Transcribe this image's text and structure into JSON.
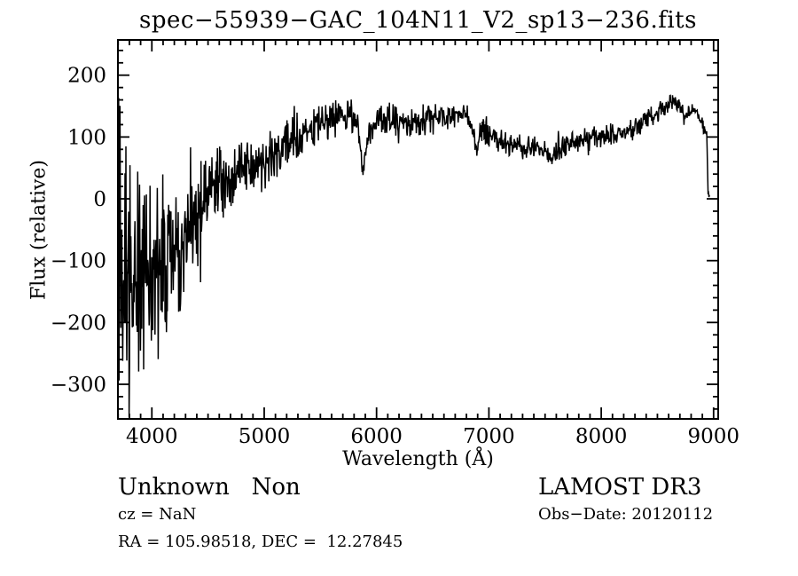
{
  "annotations": {
    "class_label": "Unknown   Non",
    "cz_label": "cz = NaN",
    "radec_label": "RA = 105.98518, DEC =  12.27845",
    "survey_label": "LAMOST DR3",
    "obsdate_label": "Obs−Date: 20120112"
  },
  "colors": {
    "line": "#000000",
    "background": "#ffffff",
    "text": "#000000"
  },
  "chart_data": {
    "type": "line",
    "title": "spec−55939−GAC_104N11_V2_sp13−236.fits",
    "xlabel": "Wavelength (Å)",
    "ylabel": "Flux (relative)",
    "xlim": [
      3698,
      9041
    ],
    "ylim": [
      -356,
      257
    ],
    "x_ticks": [
      4000,
      5000,
      6000,
      7000,
      8000,
      9000
    ],
    "x_minor_step": 100,
    "y_ticks": [
      -300,
      -200,
      -100,
      0,
      100,
      200
    ],
    "y_minor_step": 20,
    "grid": false,
    "legend": false,
    "series": [
      {
        "name": "spectrum",
        "samples": 1300,
        "noise_seed": 20120112,
        "control_points": {
          "wavelength": [
            3700,
            3720,
            3760,
            3800,
            3850,
            3900,
            3950,
            4000,
            4050,
            4100,
            4200,
            4300,
            4400,
            4500,
            4600,
            4700,
            4800,
            4900,
            5000,
            5100,
            5200,
            5300,
            5400,
            5500,
            5600,
            5700,
            5800,
            5840,
            5880,
            5930,
            6000,
            6100,
            6200,
            6300,
            6400,
            6500,
            6600,
            6700,
            6800,
            6860,
            6890,
            6930,
            7000,
            7100,
            7200,
            7300,
            7400,
            7500,
            7570,
            7630,
            7700,
            7800,
            7900,
            8000,
            8100,
            8200,
            8300,
            8400,
            8500,
            8600,
            8640,
            8700,
            8740,
            8800,
            8840,
            8880,
            8920,
            8940,
            8950,
            8963
          ],
          "flux_mean": [
            -40,
            -70,
            -90,
            -110,
            -125,
            -130,
            -125,
            -115,
            -110,
            -100,
            -80,
            -60,
            -35,
            5,
            25,
            30,
            40,
            50,
            60,
            75,
            90,
            105,
            115,
            122,
            127,
            132,
            135,
            112,
            38,
            108,
            125,
            130,
            127,
            125,
            128,
            130,
            131,
            138,
            135,
            102,
            82,
            115,
            105,
            95,
            85,
            84,
            82,
            80,
            70,
            82,
            90,
            93,
            97,
            101,
            104,
            107,
            115,
            128,
            140,
            152,
            158,
            152,
            130,
            142,
            143,
            128,
            112,
            103,
            8,
            5
          ],
          "noise_amplitude": [
            185,
            165,
            150,
            135,
            125,
            120,
            115,
            110,
            105,
            100,
            90,
            78,
            62,
            50,
            42,
            38,
            36,
            34,
            32,
            30,
            28,
            26,
            24,
            22,
            22,
            21,
            20,
            16,
            9,
            15,
            18,
            18,
            18,
            18,
            18,
            17,
            17,
            16,
            15,
            12,
            12,
            14,
            15,
            15,
            14,
            14,
            14,
            14,
            13,
            13,
            13,
            13,
            14,
            14,
            14,
            13,
            13,
            12,
            11,
            10,
            9,
            10,
            9,
            9,
            8,
            8,
            7,
            5,
            4,
            3
          ]
        }
      }
    ]
  }
}
